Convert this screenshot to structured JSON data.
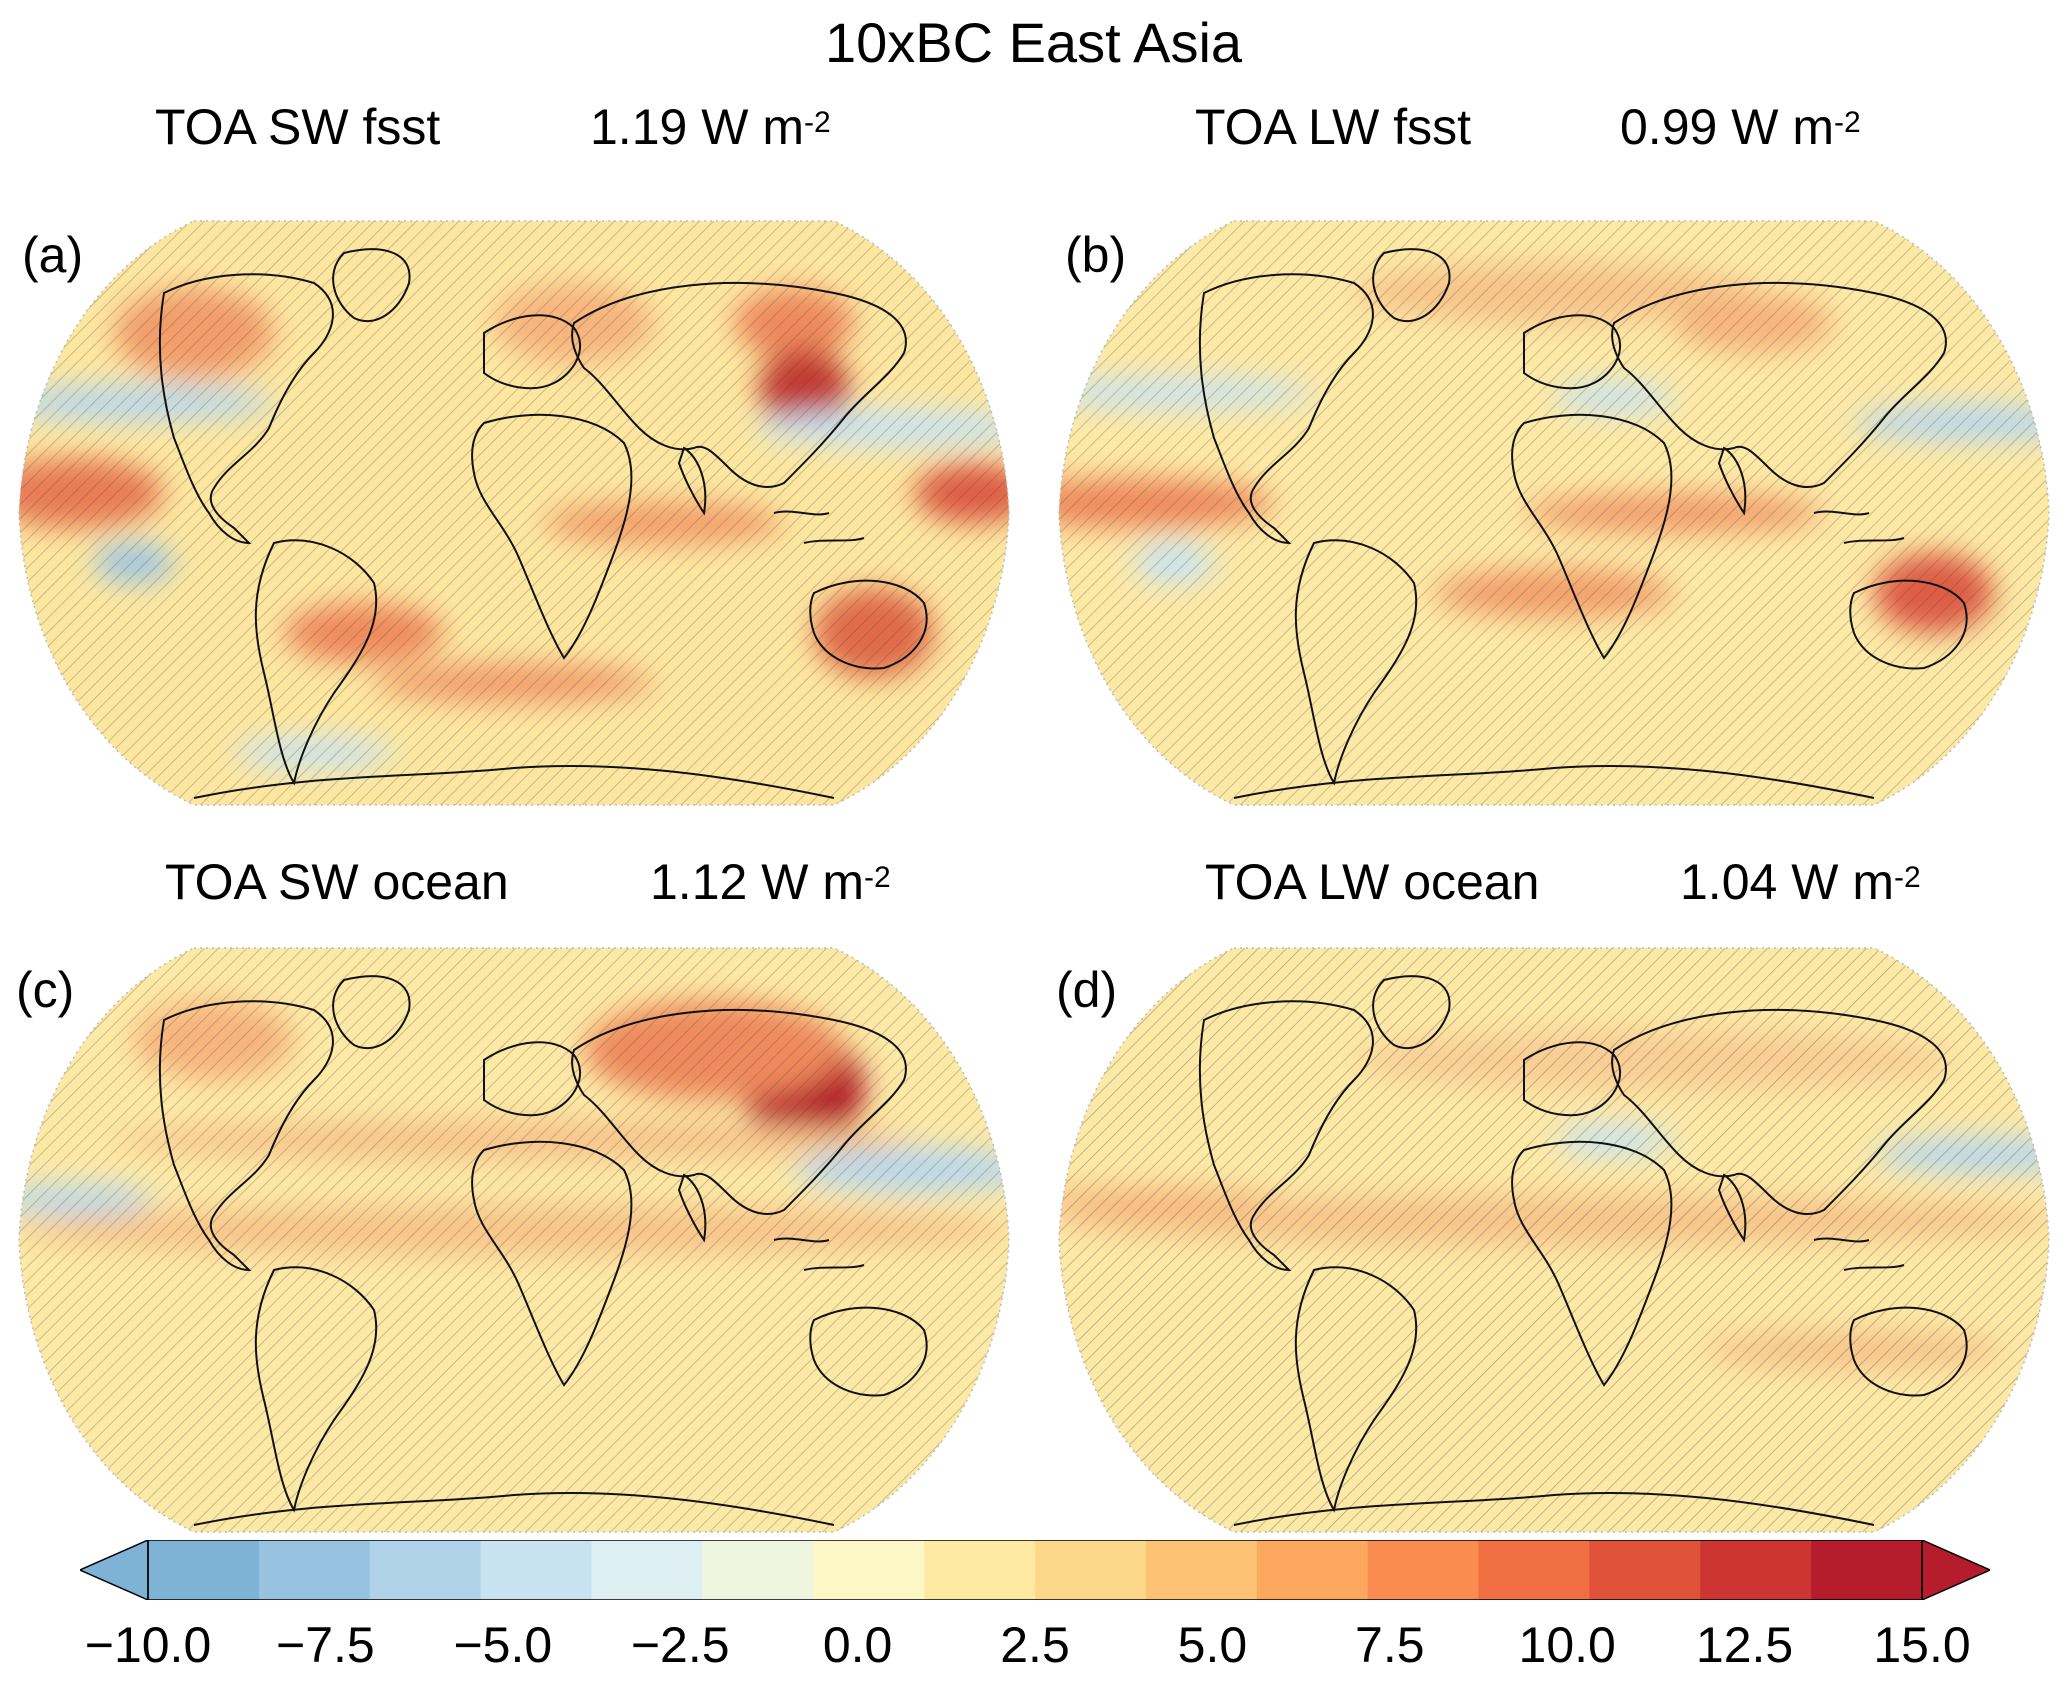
{
  "title": "10xBC East Asia",
  "panels": [
    {
      "label": "(a)",
      "name": "TOA SW fsst",
      "value": "1.19",
      "unit": "W m",
      "exp": "-2"
    },
    {
      "label": "(b)",
      "name": "TOA LW fsst",
      "value": "0.99",
      "unit": "W m",
      "exp": "-2"
    },
    {
      "label": "(c)",
      "name": "TOA SW ocean",
      "value": "1.12",
      "unit": "W m",
      "exp": "-2"
    },
    {
      "label": "(d)",
      "name": "TOA LW ocean",
      "value": "1.04",
      "unit": "W m",
      "exp": "-2"
    }
  ],
  "colorbar": {
    "ticks": [
      "−10.0",
      "−7.5",
      "−5.0",
      "−2.5",
      "0.0",
      "2.5",
      "5.0",
      "7.5",
      "10.0",
      "12.5",
      "15.0"
    ],
    "colors": [
      "#7fb3d5",
      "#98c3e0",
      "#b0d3ea",
      "#c7e3f1",
      "#ddeff3",
      "#eef6df",
      "#fcf8c6",
      "#fde9a2",
      "#fdd88a",
      "#fdc273",
      "#fca85f",
      "#f98c4e",
      "#f06e42",
      "#e1523a",
      "#cd3532",
      "#b51c2c"
    ],
    "low_arrow_color": "#7fb3d5",
    "high_arrow_color": "#b51c2c",
    "range": [
      -10.0,
      15.0
    ]
  }
}
